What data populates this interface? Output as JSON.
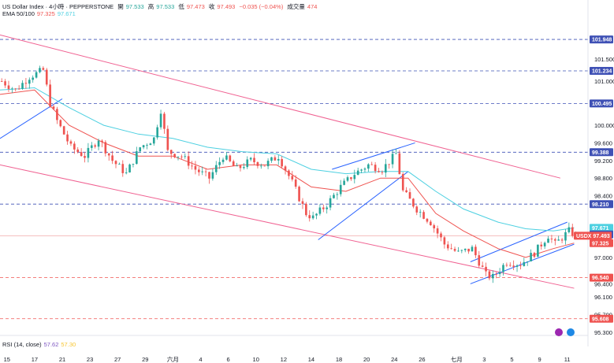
{
  "header": {
    "symbol_line": "US Dollar Index · 4小時 · PEPPERSTONE",
    "open_label": "開",
    "open": "97.533",
    "high_label": "高",
    "high": "97.533",
    "low_label": "低",
    "low": "97.473",
    "close_label": "收",
    "close": "97.493",
    "change": "−0.035 (−0.04%)",
    "volume_label": "成交量",
    "volume": "474",
    "ema_label": "EMA 50/100",
    "ema50": "97.325",
    "ema100": "97.671"
  },
  "rsi": {
    "label": "RSI (14, close)",
    "value": "57.62",
    "ma": "57.30"
  },
  "colors": {
    "up": "#26a69a",
    "down": "#ef5350",
    "ema50": "#ef5350",
    "ema100": "#4dd0e1",
    "level_line": "#3f51b5",
    "channel": "#f06292",
    "trend": "#2962ff",
    "rsi": "#7e57c2"
  },
  "chart_data": {
    "type": "candlestick",
    "ylim": [
      95.3,
      102.45
    ],
    "y_ticks": [
      "101.500",
      "101.000",
      "100.000",
      "99.600",
      "99.200",
      "98.800",
      "98.400",
      "97.000",
      "96.400",
      "96.100",
      "95.700",
      "95.300"
    ],
    "x_labels": [
      "15",
      "17",
      "21",
      "23",
      "27",
      "29",
      "六月",
      "4",
      "6",
      "10",
      "12",
      "14",
      "18",
      "20",
      "24",
      "26",
      "七月",
      "3",
      "5",
      "9",
      "11"
    ],
    "x_label_pos": [
      2,
      10,
      18,
      26,
      34,
      42,
      50,
      58,
      66,
      74,
      82,
      90,
      98,
      106,
      114,
      122,
      132,
      140,
      148,
      156,
      164
    ],
    "x_count": 170,
    "levels": [
      101.948,
      101.234,
      100.495,
      99.388,
      98.21
    ],
    "dashed_red_levels": [
      96.54,
      95.608
    ],
    "tags": [
      {
        "text": "101.948",
        "value": 101.948,
        "color": "#3f51b5"
      },
      {
        "text": "101.234",
        "value": 101.234,
        "color": "#3f51b5"
      },
      {
        "text": "100.495",
        "value": 100.495,
        "color": "#3f51b5"
      },
      {
        "text": "99.388",
        "value": 99.388,
        "color": "#3f51b5"
      },
      {
        "text": "98.210",
        "value": 98.21,
        "color": "#3f51b5"
      },
      {
        "text": "97.671",
        "value": 97.671,
        "color": "#4dd0e1"
      },
      {
        "text": "97.521",
        "value": 97.521,
        "color": "#3f51b5"
      },
      {
        "text": "USDX 97.493",
        "value": 97.493,
        "color": "#ef5350"
      },
      {
        "text": "97.325",
        "value": 97.325,
        "color": "#ef5350"
      },
      {
        "text": "96.540",
        "value": 96.54,
        "color": "#ef5350"
      },
      {
        "text": "95.608",
        "value": 95.608,
        "color": "#ef5350"
      }
    ],
    "current_price": 97.493,
    "anchors": [
      [
        0,
        101.0
      ],
      [
        4,
        100.8
      ],
      [
        8,
        101.1
      ],
      [
        12,
        101.25
      ],
      [
        14,
        100.5
      ],
      [
        16,
        100.1
      ],
      [
        20,
        99.5
      ],
      [
        24,
        99.3
      ],
      [
        28,
        99.7
      ],
      [
        32,
        99.2
      ],
      [
        36,
        98.9
      ],
      [
        40,
        99.5
      ],
      [
        44,
        99.7
      ],
      [
        46,
        100.35
      ],
      [
        48,
        99.4
      ],
      [
        52,
        99.3
      ],
      [
        56,
        99.0
      ],
      [
        60,
        98.8
      ],
      [
        64,
        99.3
      ],
      [
        68,
        99.0
      ],
      [
        72,
        99.2
      ],
      [
        76,
        99.1
      ],
      [
        80,
        99.3
      ],
      [
        84,
        98.7
      ],
      [
        88,
        98.0
      ],
      [
        90,
        97.9
      ],
      [
        94,
        98.2
      ],
      [
        98,
        98.6
      ],
      [
        102,
        98.9
      ],
      [
        106,
        99.1
      ],
      [
        110,
        99.0
      ],
      [
        114,
        99.35
      ],
      [
        116,
        98.5
      ],
      [
        120,
        98.1
      ],
      [
        124,
        97.8
      ],
      [
        128,
        97.3
      ],
      [
        132,
        97.1
      ],
      [
        136,
        97.2
      ],
      [
        140,
        96.6
      ],
      [
        142,
        96.55
      ],
      [
        146,
        96.9
      ],
      [
        150,
        96.85
      ],
      [
        154,
        97.1
      ],
      [
        158,
        97.5
      ],
      [
        160,
        97.3
      ],
      [
        164,
        97.6
      ],
      [
        166,
        97.493
      ]
    ],
    "ema50": [
      [
        0,
        100.7
      ],
      [
        10,
        100.8
      ],
      [
        20,
        100.0
      ],
      [
        30,
        99.6
      ],
      [
        40,
        99.3
      ],
      [
        50,
        99.3
      ],
      [
        60,
        99.0
      ],
      [
        70,
        99.1
      ],
      [
        80,
        99.1
      ],
      [
        90,
        98.6
      ],
      [
        100,
        98.5
      ],
      [
        110,
        98.8
      ],
      [
        118,
        98.8
      ],
      [
        126,
        98.0
      ],
      [
        134,
        97.6
      ],
      [
        144,
        97.2
      ],
      [
        152,
        97.0
      ],
      [
        160,
        97.2
      ],
      [
        166,
        97.325
      ]
    ],
    "ema100": [
      [
        0,
        100.8
      ],
      [
        10,
        100.85
      ],
      [
        20,
        100.4
      ],
      [
        30,
        100.0
      ],
      [
        40,
        99.8
      ],
      [
        50,
        99.7
      ],
      [
        60,
        99.5
      ],
      [
        70,
        99.4
      ],
      [
        80,
        99.35
      ],
      [
        90,
        99.0
      ],
      [
        100,
        98.9
      ],
      [
        110,
        98.95
      ],
      [
        118,
        98.95
      ],
      [
        126,
        98.5
      ],
      [
        134,
        98.1
      ],
      [
        144,
        97.8
      ],
      [
        152,
        97.65
      ],
      [
        160,
        97.6
      ],
      [
        166,
        97.671
      ]
    ],
    "channels": [
      {
        "from": [
          0,
          102.05
        ],
        "to": [
          162,
          98.8
        ],
        "color": "#f06292"
      },
      {
        "from": [
          0,
          99.1
        ],
        "to": [
          166,
          96.3
        ],
        "color": "#f06292"
      },
      {
        "from": [
          0,
          99.7
        ],
        "to": [
          18,
          100.6
        ],
        "color": "#2962ff"
      },
      {
        "from": [
          96,
          99.0
        ],
        "to": [
          120,
          99.6
        ],
        "color": "#2962ff"
      },
      {
        "from": [
          92,
          97.4
        ],
        "to": [
          118,
          98.95
        ],
        "color": "#2962ff"
      },
      {
        "from": [
          136,
          96.9
        ],
        "to": [
          164,
          97.8
        ],
        "color": "#2962ff"
      },
      {
        "from": [
          136,
          96.4
        ],
        "to": [
          166,
          97.3
        ],
        "color": "#2962ff"
      }
    ],
    "rsi_values": [],
    "grid": false
  }
}
